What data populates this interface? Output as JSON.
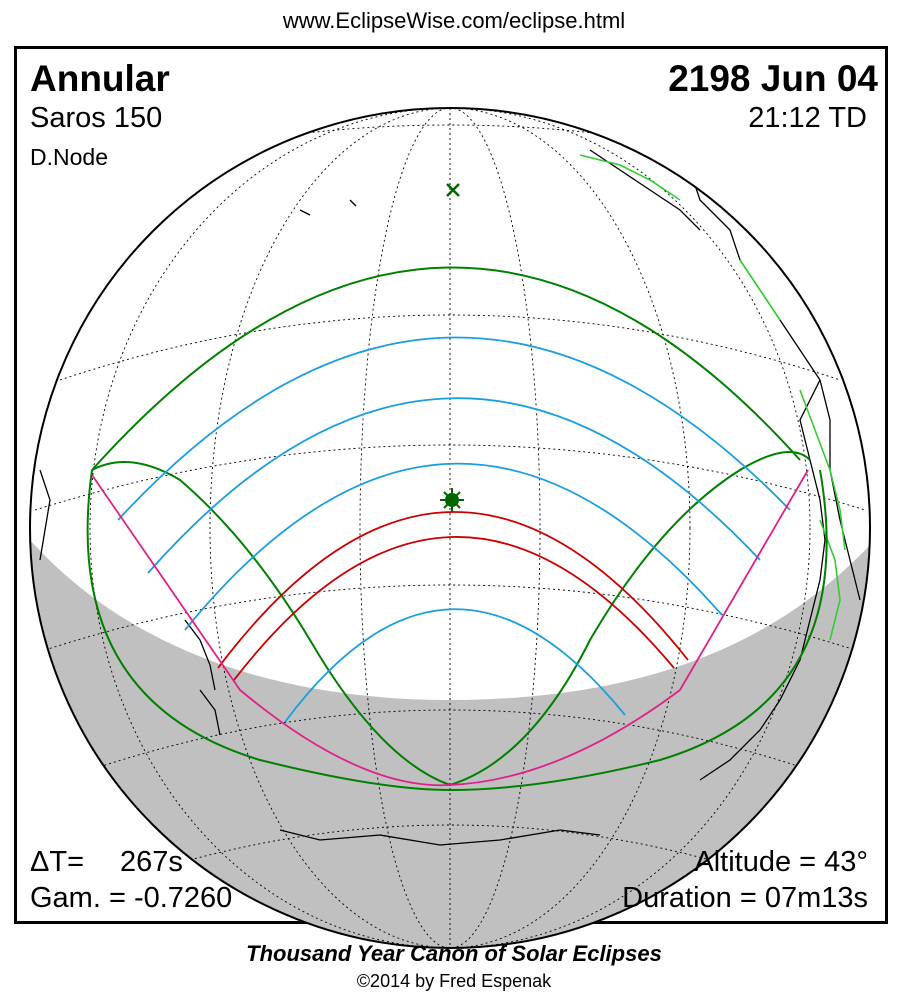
{
  "header": {
    "url": "www.EclipseWise.com/eclipse.html"
  },
  "eclipse": {
    "type": "Annular",
    "date": "2198 Jun 04",
    "saros": "Saros 150",
    "time": "21:12 TD",
    "node": "D.Node",
    "delta_t_label": "ΔT=",
    "delta_t_value": "267s",
    "gamma": "Gam. = -0.7260",
    "altitude": "Altitude = 43°",
    "duration": "Duration = 07m13s"
  },
  "footer": {
    "canon": "Thousand Year Canon of Solar Eclipses",
    "copyright": "©2014 by Fred Espenak"
  },
  "map": {
    "colors": {
      "night": "#c0c0c0",
      "globe_outline": "#000000",
      "graticule": "#000000",
      "coastline": "#000000",
      "border": "#33cc33",
      "penumbral_limit": "#008000",
      "magnitude_isoline": "#1a9ee0",
      "central_path": "#cc0000",
      "rise_set_curve": "#e0208a",
      "greatest_eclipse": "#006600"
    },
    "legend_free_symbols": [
      "cross-marker",
      "star-marker"
    ]
  }
}
